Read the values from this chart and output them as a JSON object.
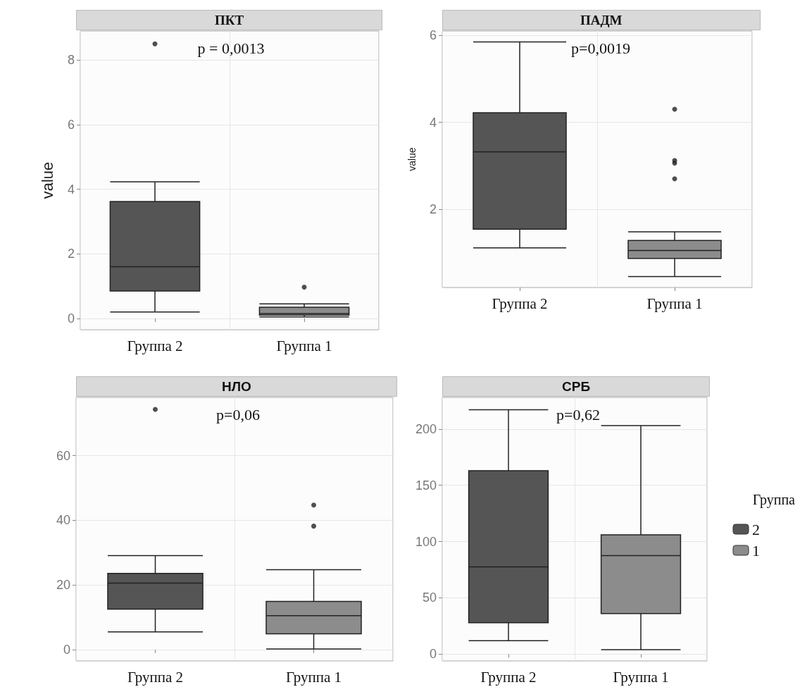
{
  "chart_data": [
    {
      "type": "box",
      "title": "ПКТ",
      "ylabel": "value",
      "categories": [
        "Группа 2",
        "Группа 1"
      ],
      "ylim": [
        -0.35,
        8.9
      ],
      "yticks": [
        0,
        2,
        4,
        6,
        8
      ],
      "grid": true,
      "legend": false,
      "annotations": [
        "p = 0,0013"
      ],
      "series": [
        {
          "color": "#555555",
          "boxes": [
            {
              "low": 0.2,
              "q1": 0.85,
              "median": 1.6,
              "q3": 3.62,
              "high": 4.23,
              "outliers": [
                8.5
              ]
            },
            null
          ]
        },
        {
          "color": "#8c8c8c",
          "boxes": [
            null,
            {
              "low": 0.05,
              "q1": 0.1,
              "median": 0.15,
              "q3": 0.35,
              "high": 0.45,
              "outliers": [
                0.97
              ]
            }
          ]
        }
      ]
    },
    {
      "type": "box",
      "title": "ПАДМ",
      "ylabel": "value",
      "categories": [
        "Группа 2",
        "Группа 1"
      ],
      "ylim": [
        0.2,
        6.1
      ],
      "yticks": [
        2,
        4,
        6
      ],
      "grid": true,
      "legend": false,
      "annotations": [
        "p=0,0019"
      ],
      "series": [
        {
          "color": "#555555",
          "boxes": [
            {
              "low": 1.11,
              "q1": 1.54,
              "median": 3.32,
              "q3": 4.22,
              "high": 5.85
            },
            null
          ]
        },
        {
          "color": "#8c8c8c",
          "boxes": [
            null,
            {
              "low": 0.45,
              "q1": 0.87,
              "median": 1.05,
              "q3": 1.28,
              "high": 1.48,
              "outliers": [
                4.3,
                3.12,
                3.06,
                2.7
              ]
            }
          ]
        }
      ]
    },
    {
      "type": "box",
      "title": "НЛО",
      "categories": [
        "Группа 2",
        "Группа 1"
      ],
      "ylim": [
        -3.5,
        78
      ],
      "yticks": [
        0,
        20,
        40,
        60
      ],
      "grid": true,
      "legend": false,
      "annotations": [
        "p=0,06"
      ],
      "series": [
        {
          "color": "#555555",
          "boxes": [
            {
              "low": 5.5,
              "q1": 12.5,
              "median": 20.6,
              "q3": 23.6,
              "high": 29.1,
              "outliers": [
                74.3
              ]
            },
            null
          ]
        },
        {
          "color": "#8c8c8c",
          "boxes": [
            null,
            {
              "low": 0.2,
              "q1": 4.9,
              "median": 10.5,
              "q3": 14.9,
              "high": 24.7,
              "outliers": [
                44.7,
                38.2
              ]
            }
          ]
        }
      ]
    },
    {
      "type": "box",
      "title": "СРБ",
      "categories": [
        "Группа 2",
        "Группа 1"
      ],
      "ylim": [
        -6,
        228
      ],
      "yticks": [
        0,
        50,
        100,
        150,
        200
      ],
      "grid": true,
      "legend": "right",
      "legend_title": "Группа",
      "annotations": [
        "p=0,62"
      ],
      "series": [
        {
          "name": "2",
          "color": "#555555",
          "boxes": [
            {
              "low": 12,
              "q1": 28,
              "median": 77.6,
              "q3": 163,
              "high": 217
            },
            null
          ]
        },
        {
          "name": "1",
          "color": "#8c8c8c",
          "boxes": [
            null,
            {
              "low": 4,
              "q1": 36,
              "median": 87.5,
              "q3": 106,
              "high": 203
            }
          ]
        }
      ]
    }
  ]
}
